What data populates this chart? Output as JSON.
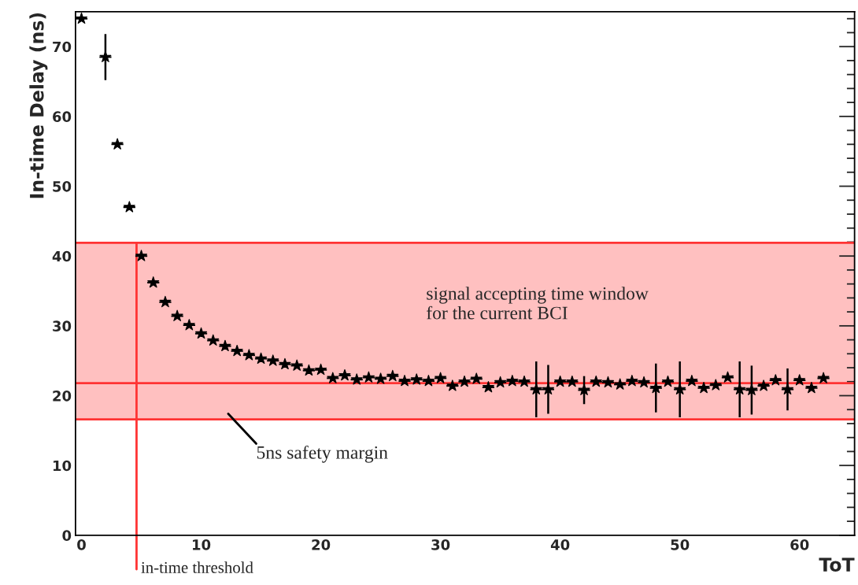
{
  "chart_data": {
    "type": "scatter",
    "xlabel": "ToT",
    "ylabel": "In-time Delay (ns)",
    "x": [
      0,
      2,
      3,
      4,
      5,
      6,
      7,
      8,
      9,
      10,
      11,
      12,
      13,
      14,
      15,
      16,
      17,
      18,
      19,
      20,
      21,
      22,
      23,
      24,
      25,
      26,
      27,
      28,
      29,
      30,
      31,
      32,
      33,
      34,
      35,
      36,
      37,
      38,
      39,
      40,
      41,
      42,
      43,
      44,
      45,
      46,
      47,
      48,
      49,
      50,
      51,
      52,
      53,
      54,
      55,
      56,
      57,
      58,
      59,
      60,
      61,
      62
    ],
    "values": [
      74,
      68.5,
      56,
      47,
      40,
      36.2,
      33.4,
      31.4,
      30.1,
      28.9,
      27.9,
      27.1,
      26.4,
      25.8,
      25.3,
      25.0,
      24.5,
      24.3,
      23.6,
      23.7,
      22.5,
      22.9,
      22.3,
      22.6,
      22.4,
      22.8,
      22.1,
      22.3,
      22.1,
      22.5,
      21.4,
      22.0,
      22.4,
      21.2,
      21.9,
      22.1,
      22.0,
      20.9,
      20.9,
      22.0,
      22.0,
      20.8,
      22.0,
      21.9,
      21.6,
      22.1,
      21.9,
      21.1,
      22.0,
      20.9,
      22.1,
      21.1,
      21.5,
      22.6,
      20.9,
      20.8,
      21.4,
      22.2,
      20.9,
      22.2,
      21.1,
      22.5
    ],
    "errors": [
      null,
      3.3,
      null,
      null,
      null,
      null,
      null,
      null,
      null,
      null,
      null,
      null,
      null,
      null,
      null,
      null,
      null,
      null,
      null,
      null,
      null,
      null,
      null,
      null,
      null,
      null,
      null,
      null,
      null,
      null,
      null,
      null,
      null,
      null,
      null,
      null,
      null,
      4,
      3.5,
      null,
      null,
      2,
      null,
      null,
      null,
      null,
      null,
      3.5,
      null,
      4,
      null,
      null,
      null,
      null,
      4,
      3.5,
      null,
      null,
      3,
      null,
      null,
      null
    ],
    "color": "#000000",
    "marker": "star",
    "xlim": [
      -0.5,
      64.6
    ],
    "xticks": [
      0,
      10,
      20,
      30,
      40,
      50,
      60
    ],
    "ylim": [
      0,
      75
    ],
    "yticks": [
      0,
      10,
      20,
      30,
      40,
      50,
      60,
      70
    ],
    "bands": [
      {
        "axis": "y",
        "from": 16.6,
        "to": 41.9,
        "label": "signal accepting time window\nfor the current BCI",
        "color": "#ffc0c0"
      }
    ],
    "ref_lines": [
      {
        "axis": "y",
        "value": 41.9,
        "color": "#ff3333"
      },
      {
        "axis": "y",
        "value": 21.8,
        "color": "#ff3333"
      },
      {
        "axis": "y",
        "value": 16.6,
        "color": "#ff3333"
      },
      {
        "axis": "x",
        "value": 4.6,
        "label": "in-time threshold",
        "color": "#ff3333"
      }
    ],
    "annotations": [
      "5ns safety margin"
    ],
    "xerrors": [
      0.5,
      0.5,
      0.5,
      0.5,
      0.5,
      0.5,
      0.5,
      0.5,
      0.5,
      0.5,
      0.5,
      0.5,
      0.5,
      0.5,
      0.5,
      0.5,
      0.5,
      0.5,
      0.5,
      0.5,
      0.5,
      0.5,
      0.5,
      0.5,
      0.5,
      0.5,
      0.5,
      0.5,
      0.5,
      0.5,
      0.5,
      0.5,
      0.5,
      0.5,
      0.5,
      0.5,
      0.5,
      0.5,
      0.5,
      0.5,
      0.5,
      0.5,
      0.5,
      0.5,
      0.5,
      0.5,
      0.5,
      0.5,
      0.5,
      0.5,
      0.5,
      0.5,
      0.5,
      0.5,
      0.5,
      0.5,
      0.5,
      0.5,
      0.5,
      0.5,
      0.5,
      0.5
    ],
    "grid": false
  }
}
